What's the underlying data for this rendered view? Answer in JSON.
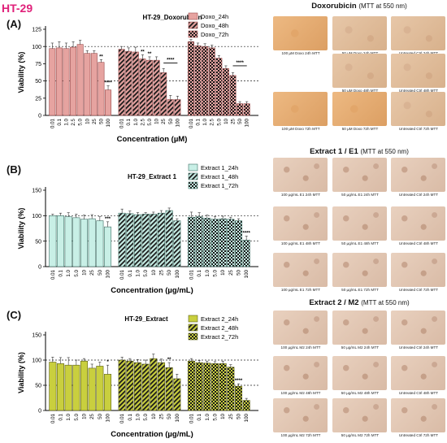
{
  "figure_label": "HT-29",
  "panels": [
    {
      "letter": "(A)",
      "micro_title_main": "Doxorubicin",
      "micro_title_sub": "(MTT at 550 nm)",
      "micro_captions": [
        "100 µM Doxo 24h MTT",
        "50 µM Doxo 24h MTT",
        "Untreated Ctrl 24h MTT",
        "",
        "50 µM Doxo 48h MTT",
        "Untreated Ctrl 48h MTT",
        "100 µM Doxo 72h MTT",
        "50 µM Doxo 72h MTT",
        "Untreated Ctrl 72h MTT"
      ]
    },
    {
      "letter": "(B)",
      "micro_title_main": "Extract 1 / E1",
      "micro_title_sub": "(MTT at 550 nm)",
      "micro_captions": [
        "100 µg/mL E1 24h MTT",
        "50 µg/mL E1 24h MTT",
        "Untreated Ctrl 24h MTT",
        "100 µg/mL E1 48h MTT",
        "50 µg/mL E1 48h MTT",
        "Untreated Ctrl 48h MTT",
        "100 µg/mL E1 72h MTT",
        "50 µg/mL E1 72h MTT",
        "Untreated Ctrl 72h MTT"
      ]
    },
    {
      "letter": "(C)",
      "micro_title_main": "Extract 2 / M2",
      "micro_title_sub": "(MTT at 550 nm)",
      "micro_captions": [
        "100 µg/mL M2 24h MTT",
        "50 µg/mL M2 24h MTT",
        "Untreated Ctrl 24h MTT",
        "100 µg/mL M2 48h MTT",
        "50 µg/mL M2 48h MTT",
        "Untreated Ctrl 48h MTT",
        "100 µg/mL M2 72h MTT",
        "50 µg/mL M2 72h MTT",
        "Untreated Ctrl 72h MTT"
      ]
    }
  ],
  "colors": {
    "panel_a_fill": "#e6a3a0",
    "panel_a_edge": "#9a4a4a",
    "panel_b_fill": "#c8efe6",
    "panel_b_edge": "#3d6f64",
    "panel_c_fill": "#c9cf3e",
    "panel_c_edge": "#5e6118",
    "pattern_ink": "#1a1a1a"
  },
  "chart_data": [
    {
      "type": "bar",
      "title": "HT-29_Doxorubicin",
      "xlabel": "Concentration (µM)",
      "ylabel": "Viability (%)",
      "ylim": [
        0,
        125
      ],
      "yticks": [
        0,
        25,
        50,
        75,
        100,
        125
      ],
      "reference_lines": [
        50,
        100
      ],
      "categories": [
        "0.01",
        "0.1",
        "1.0",
        "2.5",
        "5.0",
        "10",
        "25",
        "50",
        "100"
      ],
      "series": [
        {
          "name": "Doxo_24h",
          "values": [
            97,
            98,
            97,
            99,
            103,
            90,
            90,
            77,
            37
          ],
          "errors": [
            8,
            9,
            8,
            8,
            6,
            4,
            4,
            4,
            6
          ],
          "sig": [
            "",
            "",
            "",
            "",
            "",
            "",
            "",
            "**",
            "****"
          ]
        },
        {
          "name": "Doxo_48h",
          "values": [
            96,
            93,
            92,
            82,
            80,
            80,
            62,
            23,
            23
          ],
          "errors": [
            4,
            5,
            7,
            6,
            5,
            5,
            6,
            6,
            5
          ],
          "sig": [
            "",
            "",
            "",
            "**",
            "**",
            "",
            "",
            "",
            ""
          ]
        },
        {
          "name": "Doxo_72h",
          "values": [
            107,
            101,
            100,
            98,
            83,
            68,
            58,
            17,
            17
          ],
          "errors": [
            3,
            4,
            4,
            4,
            4,
            4,
            4,
            3,
            3
          ],
          "sig": [
            "",
            "",
            "",
            "",
            "",
            "",
            "",
            "",
            ""
          ]
        }
      ],
      "brackets": [
        {
          "series": 1,
          "from": 6,
          "to": 8,
          "label": "****"
        },
        {
          "series": 2,
          "from": 6,
          "to": 8,
          "label": "****"
        }
      ],
      "legend_position": "top-right",
      "grid": false
    },
    {
      "type": "bar",
      "title": "HT-29_Extract 1",
      "xlabel": "Concentration (µg/mL)",
      "ylabel": "Viability (%)",
      "ylim": [
        0,
        150
      ],
      "yticks": [
        0,
        50,
        100,
        150
      ],
      "reference_lines": [
        50,
        100
      ],
      "categories": [
        "0.01",
        "0.1",
        "1.0",
        "5.0",
        "10",
        "25",
        "50",
        "100"
      ],
      "series": [
        {
          "name": "Extract 1_24h",
          "values": [
            100,
            100,
            98,
            96,
            93,
            94,
            90,
            78
          ],
          "errors": [
            3,
            5,
            8,
            7,
            8,
            8,
            8,
            10
          ],
          "sig": [
            "",
            "",
            "",
            "",
            "",
            "",
            "",
            "***"
          ]
        },
        {
          "name": "Extract 1_48h",
          "values": [
            105,
            104,
            102,
            103,
            103,
            105,
            110,
            90
          ],
          "errors": [
            8,
            5,
            4,
            3,
            4,
            5,
            5,
            4
          ],
          "sig": [
            "",
            "",
            "",
            "",
            "",
            "",
            "",
            ""
          ]
        },
        {
          "name": "Extract 1_72h",
          "values": [
            97,
            98,
            95,
            93,
            94,
            93,
            90,
            52
          ],
          "errors": [
            10,
            8,
            6,
            5,
            5,
            4,
            4,
            8
          ],
          "sig": [
            "",
            "",
            "",
            "",
            "",
            "",
            "",
            "****"
          ]
        }
      ],
      "brackets": [],
      "legend_position": "top-right",
      "grid": false
    },
    {
      "type": "bar",
      "title": "HT-29_Extract",
      "xlabel": "Concentration (µg/mL)",
      "ylabel": "Viability (%)",
      "ylim": [
        0,
        150
      ],
      "yticks": [
        0,
        50,
        100,
        150
      ],
      "reference_lines": [
        50,
        100
      ],
      "categories": [
        "0.01",
        "0.1",
        "1.0",
        "5.0",
        "10",
        "25",
        "50",
        "100"
      ],
      "series": [
        {
          "name": "Extract 2_24h",
          "values": [
            96,
            93,
            90,
            90,
            98,
            84,
            88,
            72
          ],
          "errors": [
            10,
            12,
            15,
            10,
            5,
            8,
            8,
            18
          ],
          "sig": [
            "",
            "",
            "",
            "",
            "",
            "",
            "",
            "*"
          ]
        },
        {
          "name": "Extract 2_48h",
          "values": [
            100,
            98,
            95,
            92,
            103,
            95,
            85,
            63
          ],
          "errors": [
            6,
            5,
            6,
            8,
            9,
            7,
            10,
            9
          ],
          "sig": [
            "",
            "",
            "",
            "",
            "",
            "",
            "**",
            ""
          ]
        },
        {
          "name": "Extract 2_72h",
          "values": [
            98,
            95,
            94,
            93,
            93,
            86,
            48,
            20
          ],
          "errors": [
            5,
            4,
            4,
            4,
            5,
            5,
            5,
            4
          ],
          "sig": [
            "",
            "",
            "",
            "",
            "",
            "",
            "****",
            ""
          ]
        }
      ],
      "brackets": [],
      "legend_position": "top-right",
      "grid": false
    }
  ]
}
